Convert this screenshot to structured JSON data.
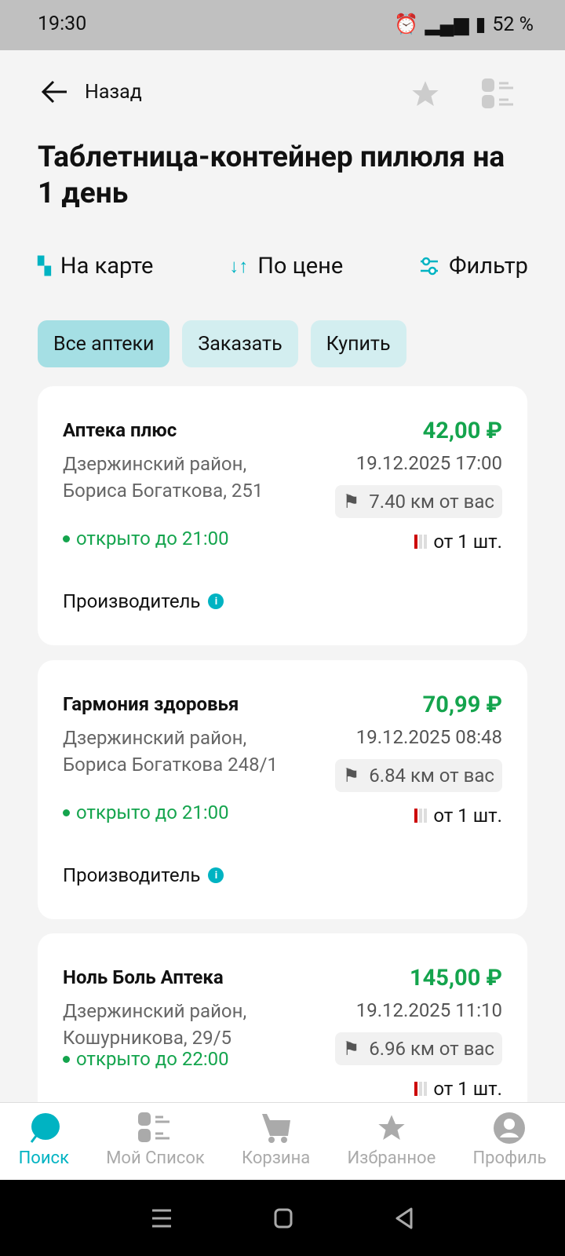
{
  "status_bar": {
    "time": "19:30",
    "battery": "52 %"
  },
  "header": {
    "back_label": "Назад",
    "title": "Таблетница-контейнер пилюля на 1 день"
  },
  "toolbar": {
    "map": "На карте",
    "sort": "По цене",
    "filter": "Фильтр"
  },
  "chips": [
    {
      "label": "Все аптеки",
      "active": true
    },
    {
      "label": "Заказать",
      "active": false
    },
    {
      "label": "Купить",
      "active": false
    }
  ],
  "pharmacies": [
    {
      "name": "Аптека плюс",
      "address": "Дзержинский район, Бориса Богаткова, 251",
      "open": "открыто до 21:00",
      "price": "42,00 ₽",
      "date": "19.12.2025 17:00",
      "distance": "7.40 км от вас",
      "stock": "от 1 шт.",
      "maker": "Производитель"
    },
    {
      "name": "Гармония здоровья",
      "address": "Дзержинский район, Бориса Богаткова 248/1",
      "open": "открыто до 21:00",
      "price": "70,99 ₽",
      "date": "19.12.2025 08:48",
      "distance": "6.84 км от вас",
      "stock": "от 1 шт.",
      "maker": "Производитель"
    },
    {
      "name": "Ноль Боль Аптека",
      "address": "Дзержинский район, Кошурникова,  29/5",
      "open": "открыто до 22:00",
      "price": "145,00 ₽",
      "date": "19.12.2025 11:10",
      "distance": "6.96 км от вас",
      "stock": "от 1 шт."
    }
  ],
  "bottom_nav": [
    {
      "label": "Поиск",
      "icon": "search-icon",
      "active": true
    },
    {
      "label": "Мой Список",
      "icon": "list-icon"
    },
    {
      "label": "Корзина",
      "icon": "cart-icon"
    },
    {
      "label": "Избранное",
      "icon": "star-icon"
    },
    {
      "label": "Профиль",
      "icon": "profile-icon"
    }
  ],
  "colors": {
    "accent": "#00b3c2",
    "price": "#14a44d"
  }
}
